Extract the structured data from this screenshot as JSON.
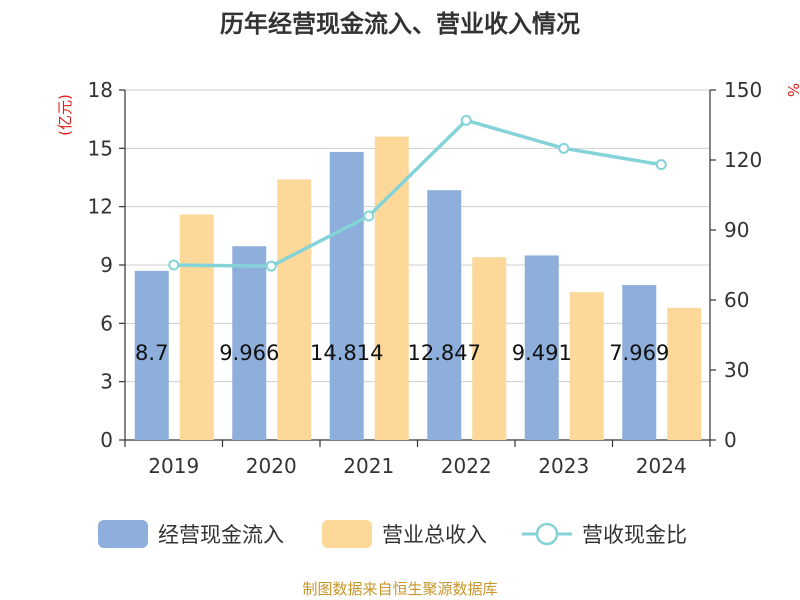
{
  "chart_data": {
    "type": "bar+line",
    "title": "历年经营现金流入、营业收入情况",
    "categories": [
      "2019",
      "2020",
      "2021",
      "2022",
      "2023",
      "2024"
    ],
    "left_axis": {
      "unit": "(亿元)",
      "min": 0,
      "max": 18,
      "ticks": [
        0,
        3,
        6,
        9,
        12,
        15,
        18
      ]
    },
    "right_axis": {
      "unit": "%",
      "min": 0,
      "max": 150,
      "ticks": [
        0,
        30,
        60,
        90,
        120,
        150
      ]
    },
    "series": [
      {
        "name": "经营现金流入",
        "type": "bar",
        "axis": "left",
        "color": "#8eaedb",
        "values": [
          8.7,
          9.966,
          14.814,
          12.847,
          9.491,
          7.969
        ],
        "labels": [
          "8.7",
          "9.966",
          "14.814",
          "12.847",
          "9.491",
          "7.969"
        ]
      },
      {
        "name": "营业总收入",
        "type": "bar",
        "axis": "left",
        "color": "#fdd899",
        "values": [
          11.6,
          13.4,
          15.6,
          9.4,
          7.6,
          6.8
        ]
      },
      {
        "name": "营收现金比",
        "type": "line",
        "axis": "right",
        "color": "#83d3d8",
        "values": [
          75,
          74.5,
          96,
          137,
          125,
          118
        ]
      }
    ],
    "gridlines": true,
    "legend_position": "bottom"
  },
  "source": "制图数据来自恒生聚源数据库"
}
